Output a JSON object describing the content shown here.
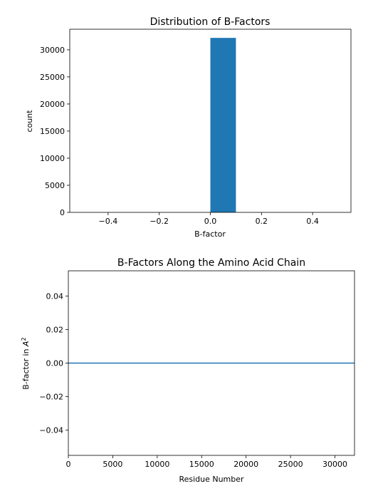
{
  "chart_data": [
    {
      "type": "bar",
      "title": "Distribution of B-Factors",
      "xlabel": "B-factor",
      "ylabel": "count",
      "xlim": [
        -0.55,
        0.55
      ],
      "ylim": [
        0,
        33800
      ],
      "xticks": [
        -0.4,
        -0.2,
        0.0,
        0.2,
        0.4
      ],
      "xtick_labels": [
        "−0.4",
        "−0.2",
        "0.0",
        "0.2",
        "0.4"
      ],
      "yticks": [
        0,
        5000,
        10000,
        15000,
        20000,
        25000,
        30000
      ],
      "ytick_labels": [
        "0",
        "5000",
        "10000",
        "15000",
        "20000",
        "25000",
        "30000"
      ],
      "bins": [
        {
          "x0": 0.0,
          "x1": 0.1,
          "value": 32200
        }
      ],
      "color": "#1f77b4",
      "grid": false
    },
    {
      "type": "line",
      "title": "B-Factors Along the Amino Acid Chain",
      "xlabel": "Residue Number",
      "ylabel_prefix": "B-factor in ",
      "ylabel_symbol": "A",
      "ylabel_exponent": "2",
      "xlim": [
        0,
        32200
      ],
      "ylim": [
        -0.055,
        0.055
      ],
      "xticks": [
        0,
        5000,
        10000,
        15000,
        20000,
        25000,
        30000
      ],
      "xtick_labels": [
        "0",
        "5000",
        "10000",
        "15000",
        "20000",
        "25000",
        "30000"
      ],
      "yticks": [
        -0.04,
        -0.02,
        0.0,
        0.02,
        0.04
      ],
      "ytick_labels": [
        "−0.04",
        "−0.02",
        "0.00",
        "0.02",
        "0.04"
      ],
      "series": [
        {
          "x": [
            0,
            32200
          ],
          "y": [
            0,
            0
          ],
          "color": "#1f77b4"
        }
      ],
      "grid": false
    }
  ]
}
